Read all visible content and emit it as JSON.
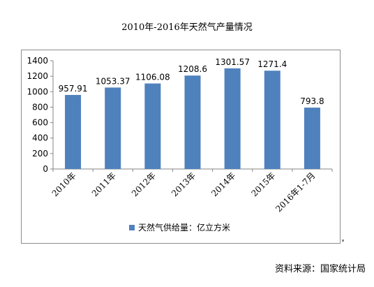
{
  "chart_data": {
    "type": "bar",
    "title": "2010年-2016年天然气产量情况",
    "categories": [
      "2010年",
      "2011年",
      "2012年",
      "2013年",
      "2014年",
      "2015年",
      "2016年1-7月"
    ],
    "series": [
      {
        "name": "天然气供给量：亿立方米",
        "values": [
          957.91,
          1053.37,
          1106.08,
          1208.6,
          1301.57,
          1271.4,
          793.8
        ],
        "labels": [
          "957.91",
          "1053.37",
          "1106.08",
          "1208.6",
          "1301.57",
          "1271.4",
          "793.8"
        ],
        "color": "#4f81bd"
      }
    ],
    "ylim": [
      0,
      1400
    ],
    "yticks": [
      0,
      200,
      400,
      600,
      800,
      1000,
      1200,
      1400
    ],
    "grid": false,
    "legend_position": "bottom"
  },
  "source": "资料来源：国家统计局"
}
